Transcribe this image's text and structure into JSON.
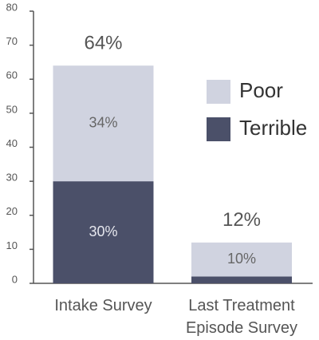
{
  "chart_data": {
    "type": "stacked_bar",
    "categories": [
      "Intake Survey",
      "Last Treatment Episode Survey"
    ],
    "series": [
      {
        "name": "Terrible",
        "color": "#4b5069",
        "values": [
          30,
          2
        ],
        "value_labels": [
          "30%",
          null
        ]
      },
      {
        "name": "Poor",
        "color": "#d0d3e0",
        "values": [
          34,
          10
        ],
        "value_labels": [
          "34%",
          "10%"
        ]
      }
    ],
    "total_labels": [
      "64%",
      "12%"
    ],
    "ylim": [
      0,
      80
    ],
    "yticks": [
      0,
      10,
      20,
      30,
      40,
      50,
      60,
      70,
      80
    ],
    "grid": false
  }
}
